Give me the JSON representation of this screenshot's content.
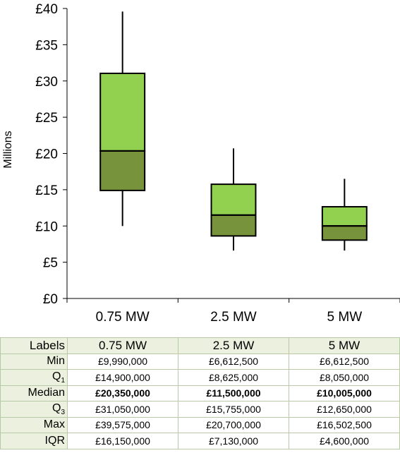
{
  "chart_data": {
    "type": "boxplot",
    "ylabel": "Millions",
    "ylim": [
      0,
      40
    ],
    "yticks": [
      "£0",
      "£5",
      "£10",
      "£15",
      "£20",
      "£25",
      "£30",
      "£35",
      "£40"
    ],
    "categories": [
      "0.75 MW",
      "2.5 MW",
      "5 MW"
    ],
    "min": [
      9.99,
      6.6125,
      6.6125
    ],
    "q1": [
      14.9,
      8.625,
      8.05
    ],
    "median": [
      20.35,
      11.5,
      10.005
    ],
    "q3": [
      31.05,
      15.755,
      12.65
    ],
    "max": [
      39.575,
      20.7,
      16.5025
    ],
    "colors": {
      "upper_box": "#92d050",
      "lower_box": "#77933c",
      "stroke": "#000000"
    }
  },
  "table": {
    "corner": "Labels",
    "headers": [
      "0.75 MW",
      "2.5 MW",
      "5 MW"
    ],
    "rows": [
      {
        "label": "Min",
        "sub": "",
        "values": [
          "£9,990,000",
          "£6,612,500",
          "£6,612,500"
        ]
      },
      {
        "label": "Q",
        "sub": "1",
        "values": [
          "£14,900,000",
          "£8,625,000",
          "£8,050,000"
        ]
      },
      {
        "label": "Median",
        "sub": "",
        "values": [
          "£20,350,000",
          "£11,500,000",
          "£10,005,000"
        ]
      },
      {
        "label": "Q",
        "sub": "3",
        "values": [
          "£31,050,000",
          "£15,755,000",
          "£12,650,000"
        ]
      },
      {
        "label": "Max",
        "sub": "",
        "values": [
          "£39,575,000",
          "£20,700,000",
          "£16,502,500"
        ]
      },
      {
        "label": "IQR",
        "sub": "",
        "values": [
          "£16,150,000",
          "£7,130,000",
          "£4,600,000"
        ]
      }
    ]
  }
}
